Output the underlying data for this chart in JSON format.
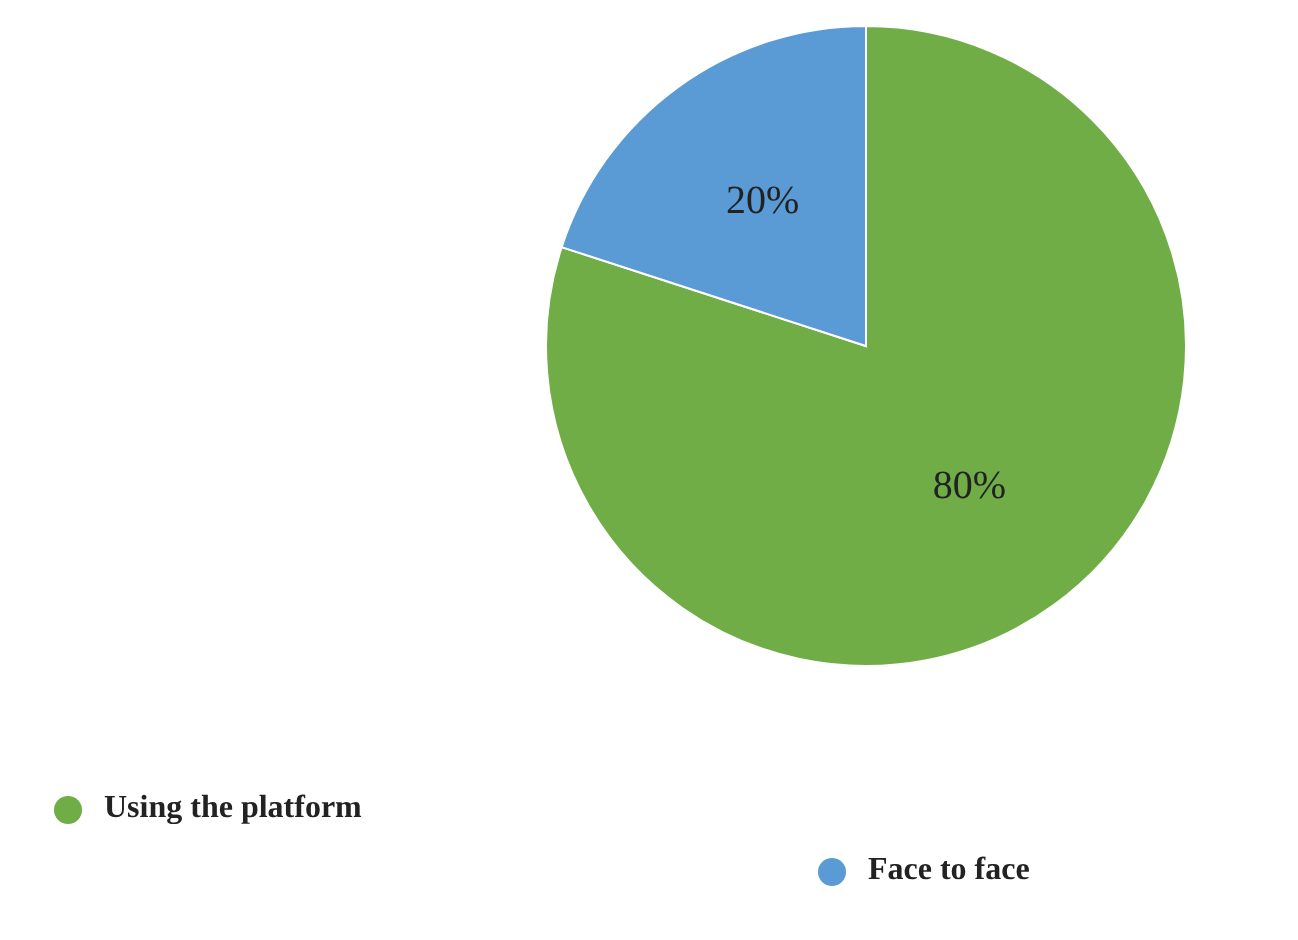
{
  "chart_data": {
    "type": "pie",
    "categories": [
      "Using the platform",
      "Face to face"
    ],
    "values": [
      80,
      20
    ],
    "colors": [
      "#70ad47",
      "#5b9bd5"
    ],
    "value_labels": [
      "80%",
      "20%"
    ],
    "legend": "bottom"
  }
}
